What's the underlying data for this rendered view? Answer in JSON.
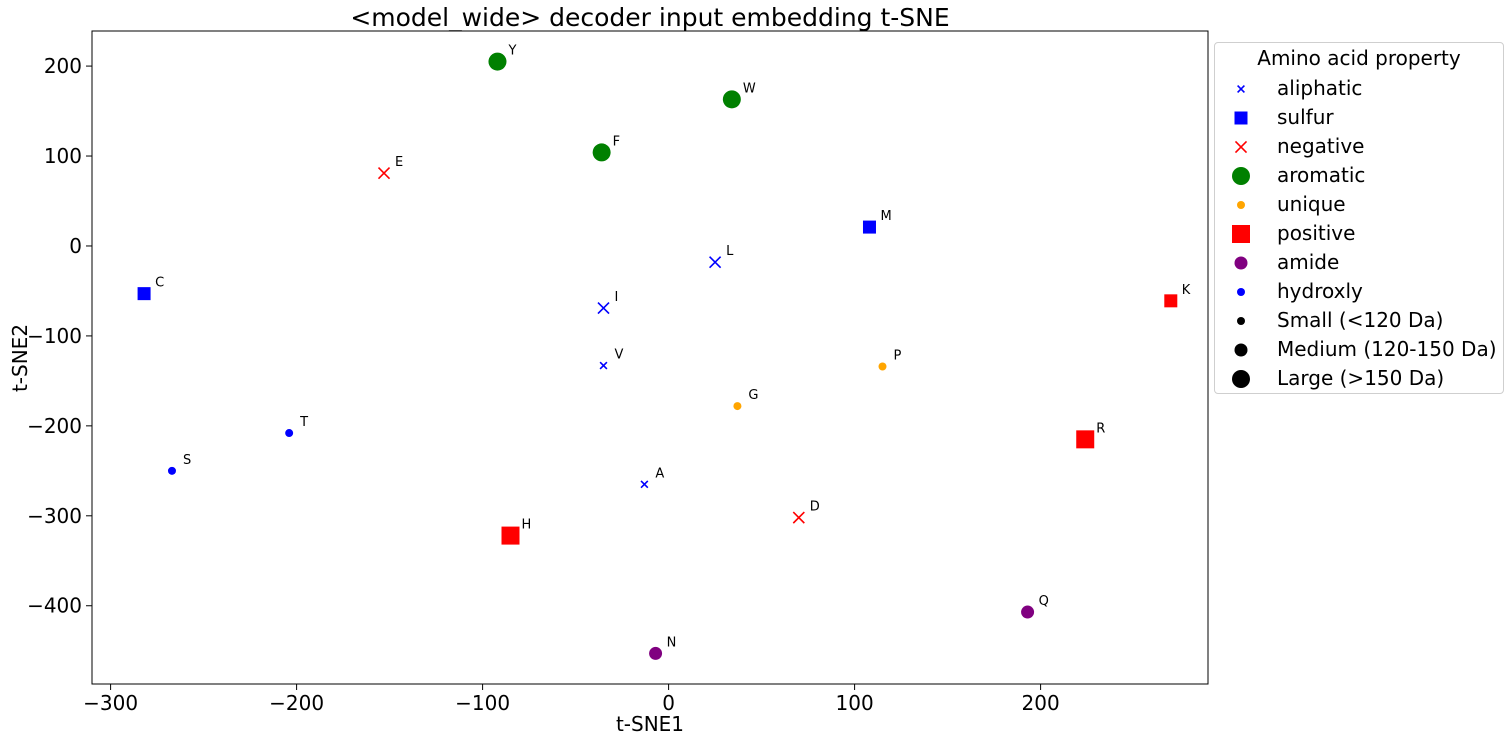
{
  "chart_data": {
    "type": "scatter",
    "title": "<model_wide> decoder input embedding t-SNE",
    "xlabel": "t-SNE1",
    "ylabel": "t-SNE2",
    "xlim": [
      -310,
      290
    ],
    "ylim": [
      -487,
      239
    ],
    "xticks": [
      -300,
      -200,
      -100,
      0,
      100,
      200
    ],
    "yticks": [
      200,
      100,
      0,
      -100,
      -200,
      -300,
      -400
    ],
    "xtick_labels": [
      "−300",
      "−200",
      "−100",
      "0",
      "100",
      "200"
    ],
    "ytick_labels": [
      "200",
      "100",
      "0",
      "−100",
      "−200",
      "−300",
      "−400"
    ],
    "grid": false,
    "legend_placement": "outside right",
    "legend_title": "Amino acid property",
    "points": [
      {
        "label": "Y",
        "x": -92,
        "y": 205,
        "property": "aromatic",
        "size": "large"
      },
      {
        "label": "W",
        "x": 34,
        "y": 163,
        "property": "aromatic",
        "size": "large"
      },
      {
        "label": "F",
        "x": -36,
        "y": 104,
        "property": "aromatic",
        "size": "large"
      },
      {
        "label": "E",
        "x": -153,
        "y": 81,
        "property": "negative",
        "size": "medium"
      },
      {
        "label": "M",
        "x": 108,
        "y": 21,
        "property": "sulfur",
        "size": "medium"
      },
      {
        "label": "L",
        "x": 25,
        "y": -18,
        "property": "aliphatic",
        "size": "medium"
      },
      {
        "label": "C",
        "x": -282,
        "y": -53,
        "property": "sulfur",
        "size": "medium"
      },
      {
        "label": "K",
        "x": 270,
        "y": -61,
        "property": "positive",
        "size": "medium"
      },
      {
        "label": "I",
        "x": -35,
        "y": -69,
        "property": "aliphatic",
        "size": "medium"
      },
      {
        "label": "V",
        "x": -35,
        "y": -133,
        "property": "aliphatic",
        "size": "small"
      },
      {
        "label": "P",
        "x": 115,
        "y": -134,
        "property": "unique",
        "size": "small"
      },
      {
        "label": "G",
        "x": 37,
        "y": -178,
        "property": "unique",
        "size": "small"
      },
      {
        "label": "T",
        "x": -204,
        "y": -208,
        "property": "hydroxly",
        "size": "small"
      },
      {
        "label": "R",
        "x": 224,
        "y": -215,
        "property": "positive",
        "size": "large"
      },
      {
        "label": "S",
        "x": -267,
        "y": -250,
        "property": "hydroxly",
        "size": "small"
      },
      {
        "label": "A",
        "x": -13,
        "y": -265,
        "property": "aliphatic",
        "size": "small"
      },
      {
        "label": "D",
        "x": 70,
        "y": -302,
        "property": "negative",
        "size": "medium"
      },
      {
        "label": "H",
        "x": -85,
        "y": -322,
        "property": "positive",
        "size": "large"
      },
      {
        "label": "Q",
        "x": 193,
        "y": -407,
        "property": "amide",
        "size": "medium"
      },
      {
        "label": "N",
        "x": -7,
        "y": -453,
        "property": "amide",
        "size": "medium"
      }
    ],
    "properties": {
      "aliphatic": {
        "color": "#0000ff",
        "marker": "x"
      },
      "sulfur": {
        "color": "#0000ff",
        "marker": "square"
      },
      "negative": {
        "color": "#ff0000",
        "marker": "x"
      },
      "aromatic": {
        "color": "#008000",
        "marker": "circle"
      },
      "unique": {
        "color": "#ffa500",
        "marker": "circle"
      },
      "positive": {
        "color": "#ff0000",
        "marker": "square"
      },
      "amide": {
        "color": "#800080",
        "marker": "circle"
      },
      "hydroxly": {
        "color": "#0000ff",
        "marker": "circle"
      }
    },
    "legend": [
      {
        "label": "aliphatic",
        "color": "#0000ff",
        "marker": "x",
        "size": "small"
      },
      {
        "label": "sulfur",
        "color": "#0000ff",
        "marker": "square",
        "size": "medium"
      },
      {
        "label": "negative",
        "color": "#ff0000",
        "marker": "x",
        "size": "medium"
      },
      {
        "label": "aromatic",
        "color": "#008000",
        "marker": "circle",
        "size": "large"
      },
      {
        "label": "unique",
        "color": "#ffa500",
        "marker": "circle",
        "size": "small"
      },
      {
        "label": "positive",
        "color": "#ff0000",
        "marker": "square",
        "size": "large"
      },
      {
        "label": "amide",
        "color": "#800080",
        "marker": "circle",
        "size": "medium"
      },
      {
        "label": "hydroxly",
        "color": "#0000ff",
        "marker": "circle",
        "size": "small"
      },
      {
        "label": "Small (<120 Da)",
        "color": "#000000",
        "marker": "circle",
        "size": "small"
      },
      {
        "label": "Medium (120-150 Da)",
        "color": "#000000",
        "marker": "circle",
        "size": "medium"
      },
      {
        "label": "Large (>150 Da)",
        "color": "#000000",
        "marker": "circle",
        "size": "large"
      }
    ]
  }
}
